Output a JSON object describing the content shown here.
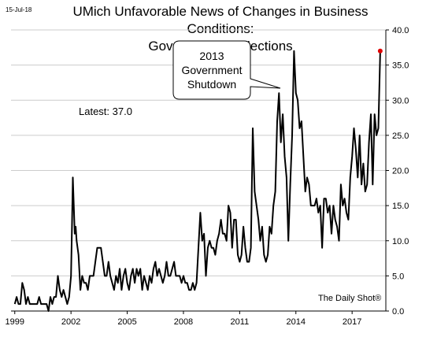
{
  "header": {
    "date": "15-Jul-18",
    "title_line1": "UMich Unfavorable News of Changes in Business Conditions:",
    "title_line2": "Government & Elections"
  },
  "annotation": {
    "lines": [
      "2013",
      "Government",
      "Shutdown"
    ]
  },
  "latest_label": "Latest:  37.0",
  "source": "The Daily Shot®",
  "colors": {
    "line": "#000000",
    "latest_marker": "#e00000",
    "grid": "#cccccc",
    "axis": "#000000"
  },
  "chart_data": {
    "type": "line",
    "title": "UMich Unfavorable News of Changes in Business Conditions: Government & Elections",
    "xlabel": "",
    "ylabel": "",
    "xlim": [
      1998.8,
      2018.8
    ],
    "ylim": [
      0,
      40
    ],
    "y_ticks": [
      0,
      5,
      10,
      15,
      20,
      25,
      30,
      35,
      40
    ],
    "y_tick_labels": [
      "0.0",
      "5.0",
      "10.0",
      "15.0",
      "20.0",
      "25.0",
      "30.0",
      "35.0",
      "40.0"
    ],
    "x_ticks": [
      1999,
      2002,
      2005,
      2008,
      2011,
      2014,
      2017
    ],
    "x_tick_labels": [
      "1999",
      "2002",
      "2005",
      "2008",
      "2011",
      "2014",
      "2017"
    ],
    "grid": "horizontal",
    "latest_value": 37.0,
    "series": [
      {
        "points": [
          [
            1999.0,
            1
          ],
          [
            1999.1,
            2
          ],
          [
            1999.2,
            1
          ],
          [
            1999.3,
            1
          ],
          [
            1999.4,
            4
          ],
          [
            1999.5,
            3
          ],
          [
            1999.6,
            1
          ],
          [
            1999.7,
            2
          ],
          [
            1999.8,
            1
          ],
          [
            1999.9,
            1
          ],
          [
            2000.0,
            1
          ],
          [
            2000.1,
            1
          ],
          [
            2000.2,
            1
          ],
          [
            2000.3,
            2
          ],
          [
            2000.4,
            1
          ],
          [
            2000.5,
            1
          ],
          [
            2000.6,
            1
          ],
          [
            2000.7,
            1
          ],
          [
            2000.8,
            0
          ],
          [
            2000.9,
            2
          ],
          [
            2001.0,
            1
          ],
          [
            2001.1,
            2
          ],
          [
            2001.2,
            2
          ],
          [
            2001.3,
            5
          ],
          [
            2001.4,
            3
          ],
          [
            2001.5,
            2
          ],
          [
            2001.6,
            3
          ],
          [
            2001.7,
            2
          ],
          [
            2001.8,
            1
          ],
          [
            2001.9,
            2
          ],
          [
            2002.0,
            5
          ],
          [
            2002.05,
            12
          ],
          [
            2002.1,
            19
          ],
          [
            2002.2,
            11
          ],
          [
            2002.25,
            12
          ],
          [
            2002.3,
            10
          ],
          [
            2002.4,
            8
          ],
          [
            2002.5,
            3
          ],
          [
            2002.6,
            5
          ],
          [
            2002.7,
            4
          ],
          [
            2002.8,
            4
          ],
          [
            2002.9,
            3
          ],
          [
            2003.0,
            5
          ],
          [
            2003.1,
            5
          ],
          [
            2003.2,
            5
          ],
          [
            2003.3,
            7
          ],
          [
            2003.4,
            9
          ],
          [
            2003.5,
            9
          ],
          [
            2003.6,
            9
          ],
          [
            2003.7,
            7
          ],
          [
            2003.8,
            5
          ],
          [
            2003.9,
            5
          ],
          [
            2004.0,
            7
          ],
          [
            2004.1,
            5
          ],
          [
            2004.2,
            4
          ],
          [
            2004.3,
            3
          ],
          [
            2004.4,
            5
          ],
          [
            2004.5,
            4
          ],
          [
            2004.6,
            6
          ],
          [
            2004.7,
            3
          ],
          [
            2004.8,
            5
          ],
          [
            2004.9,
            6
          ],
          [
            2005.0,
            4
          ],
          [
            2005.1,
            3
          ],
          [
            2005.2,
            5
          ],
          [
            2005.3,
            6
          ],
          [
            2005.4,
            4
          ],
          [
            2005.5,
            6
          ],
          [
            2005.6,
            5
          ],
          [
            2005.7,
            6
          ],
          [
            2005.8,
            3
          ],
          [
            2005.9,
            5
          ],
          [
            2006.0,
            4
          ],
          [
            2006.1,
            3
          ],
          [
            2006.2,
            5
          ],
          [
            2006.3,
            4
          ],
          [
            2006.4,
            6
          ],
          [
            2006.5,
            7
          ],
          [
            2006.6,
            5
          ],
          [
            2006.7,
            6
          ],
          [
            2006.8,
            5
          ],
          [
            2006.9,
            4
          ],
          [
            2007.0,
            5
          ],
          [
            2007.1,
            7
          ],
          [
            2007.2,
            5
          ],
          [
            2007.3,
            5
          ],
          [
            2007.4,
            6
          ],
          [
            2007.5,
            7
          ],
          [
            2007.6,
            5
          ],
          [
            2007.7,
            5
          ],
          [
            2007.8,
            5
          ],
          [
            2007.9,
            4
          ],
          [
            2008.0,
            5
          ],
          [
            2008.1,
            4
          ],
          [
            2008.2,
            4
          ],
          [
            2008.3,
            3
          ],
          [
            2008.4,
            3
          ],
          [
            2008.5,
            4
          ],
          [
            2008.6,
            3
          ],
          [
            2008.7,
            4
          ],
          [
            2008.8,
            9
          ],
          [
            2008.9,
            14
          ],
          [
            2009.0,
            10
          ],
          [
            2009.1,
            11
          ],
          [
            2009.2,
            5
          ],
          [
            2009.3,
            9
          ],
          [
            2009.4,
            10
          ],
          [
            2009.5,
            9
          ],
          [
            2009.6,
            9
          ],
          [
            2009.7,
            8
          ],
          [
            2009.8,
            10
          ],
          [
            2009.9,
            11
          ],
          [
            2010.0,
            13
          ],
          [
            2010.1,
            11
          ],
          [
            2010.2,
            11
          ],
          [
            2010.3,
            10
          ],
          [
            2010.4,
            15
          ],
          [
            2010.5,
            14
          ],
          [
            2010.6,
            9
          ],
          [
            2010.7,
            13
          ],
          [
            2010.8,
            13
          ],
          [
            2010.9,
            8
          ],
          [
            2011.0,
            7
          ],
          [
            2011.1,
            8
          ],
          [
            2011.2,
            12
          ],
          [
            2011.3,
            9
          ],
          [
            2011.4,
            7
          ],
          [
            2011.5,
            7
          ],
          [
            2011.6,
            9
          ],
          [
            2011.7,
            26
          ],
          [
            2011.8,
            17
          ],
          [
            2011.9,
            15
          ],
          [
            2012.0,
            13
          ],
          [
            2012.1,
            10
          ],
          [
            2012.2,
            12
          ],
          [
            2012.3,
            8
          ],
          [
            2012.4,
            7
          ],
          [
            2012.5,
            8
          ],
          [
            2012.6,
            12
          ],
          [
            2012.7,
            11
          ],
          [
            2012.8,
            15
          ],
          [
            2012.9,
            17
          ],
          [
            2013.0,
            27
          ],
          [
            2013.1,
            31
          ],
          [
            2013.2,
            24
          ],
          [
            2013.3,
            28
          ],
          [
            2013.4,
            22
          ],
          [
            2013.5,
            19
          ],
          [
            2013.6,
            10
          ],
          [
            2013.7,
            18
          ],
          [
            2013.8,
            25
          ],
          [
            2013.9,
            37
          ],
          [
            2014.0,
            31
          ],
          [
            2014.1,
            30
          ],
          [
            2014.2,
            26
          ],
          [
            2014.3,
            27
          ],
          [
            2014.4,
            22
          ],
          [
            2014.5,
            17
          ],
          [
            2014.6,
            19
          ],
          [
            2014.7,
            18
          ],
          [
            2014.8,
            15
          ],
          [
            2014.9,
            15
          ],
          [
            2015.0,
            15
          ],
          [
            2015.1,
            16
          ],
          [
            2015.2,
            14
          ],
          [
            2015.3,
            15
          ],
          [
            2015.4,
            9
          ],
          [
            2015.5,
            16
          ],
          [
            2015.6,
            16
          ],
          [
            2015.7,
            14
          ],
          [
            2015.8,
            15
          ],
          [
            2015.9,
            11
          ],
          [
            2016.0,
            15
          ],
          [
            2016.1,
            13
          ],
          [
            2016.2,
            12
          ],
          [
            2016.3,
            10
          ],
          [
            2016.4,
            18
          ],
          [
            2016.5,
            15
          ],
          [
            2016.6,
            16
          ],
          [
            2016.7,
            14
          ],
          [
            2016.8,
            13
          ],
          [
            2016.9,
            19
          ],
          [
            2017.0,
            22
          ],
          [
            2017.1,
            26
          ],
          [
            2017.2,
            23
          ],
          [
            2017.3,
            19
          ],
          [
            2017.4,
            25
          ],
          [
            2017.5,
            18
          ],
          [
            2017.6,
            21
          ],
          [
            2017.7,
            17
          ],
          [
            2017.8,
            18
          ],
          [
            2017.9,
            24
          ],
          [
            2018.0,
            28
          ],
          [
            2018.1,
            18
          ],
          [
            2018.2,
            28
          ],
          [
            2018.3,
            25
          ],
          [
            2018.4,
            26
          ],
          [
            2018.5,
            37
          ]
        ]
      }
    ]
  }
}
